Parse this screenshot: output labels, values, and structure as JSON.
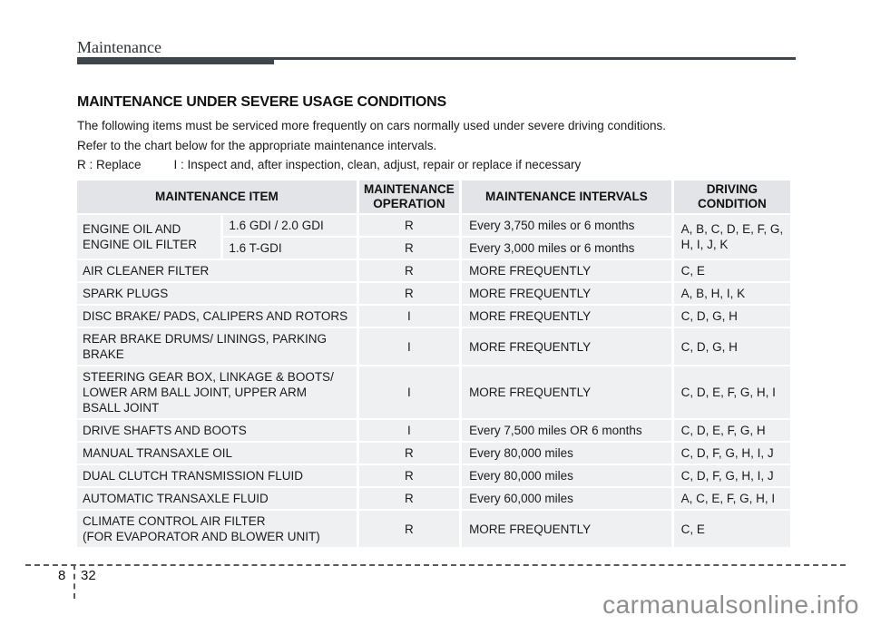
{
  "header": {
    "section_title": "Maintenance"
  },
  "content": {
    "title": "MAINTENANCE UNDER SEVERE USAGE CONDITIONS",
    "intro_line1": "The following items must be serviced more frequently on cars normally used under severe driving conditions.",
    "intro_line2": "Refer to the chart below for the appropriate maintenance intervals.",
    "legend_replace": "R : Replace",
    "legend_inspect": "I : Inspect and, after inspection, clean, adjust, repair or replace if necessary"
  },
  "table": {
    "header_cells": [
      {
        "text": "MAINTENANCE ITEM",
        "colspan": 2
      },
      {
        "text": "MAINTENANCE\nOPERATION"
      },
      {
        "text": "MAINTENANCE INTERVALS"
      },
      {
        "text": "DRIVING\nCONDITION"
      }
    ],
    "rows": [
      {
        "cells": [
          {
            "text": "ENGINE OIL AND\nENGINE OIL FILTER",
            "rowspan": 2,
            "type": "item"
          },
          {
            "text": "1.6 GDI / 2.0 GDI",
            "type": "item-sub"
          },
          {
            "text": "R",
            "type": "op"
          },
          {
            "text": "Every 3,750 miles or 6 months",
            "type": "interval"
          },
          {
            "text": "A, B, C, D, E, F, G, H, I, J, K",
            "rowspan": 2,
            "type": "cond"
          }
        ]
      },
      {
        "cells": [
          {
            "text": "1.6 T-GDI",
            "type": "item-sub"
          },
          {
            "text": "R",
            "type": "op"
          },
          {
            "text": "Every 3,000 miles or 6 months",
            "type": "interval"
          }
        ]
      },
      {
        "cells": [
          {
            "text": "AIR CLEANER FILTER",
            "colspan": 2,
            "type": "item"
          },
          {
            "text": "R",
            "type": "op"
          },
          {
            "text": "MORE FREQUENTLY",
            "type": "interval"
          },
          {
            "text": "C, E",
            "type": "cond"
          }
        ]
      },
      {
        "cells": [
          {
            "text": "SPARK PLUGS",
            "colspan": 2,
            "type": "item"
          },
          {
            "text": "R",
            "type": "op"
          },
          {
            "text": "MORE FREQUENTLY",
            "type": "interval"
          },
          {
            "text": "A, B, H, I, K",
            "type": "cond"
          }
        ]
      },
      {
        "cells": [
          {
            "text": "DISC BRAKE/ PADS, CALIPERS AND ROTORS",
            "colspan": 2,
            "type": "item"
          },
          {
            "text": "I",
            "type": "op"
          },
          {
            "text": "MORE FREQUENTLY",
            "type": "interval"
          },
          {
            "text": "C, D, G, H",
            "type": "cond"
          }
        ]
      },
      {
        "cells": [
          {
            "text": "REAR BRAKE DRUMS/ LININGS, PARKING\nBRAKE",
            "colspan": 2,
            "type": "item"
          },
          {
            "text": "I",
            "type": "op"
          },
          {
            "text": "MORE FREQUENTLY",
            "type": "interval"
          },
          {
            "text": "C, D, G, H",
            "type": "cond"
          }
        ]
      },
      {
        "cells": [
          {
            "text": "STEERING GEAR BOX, LINKAGE & BOOTS/\nLOWER ARM BALL JOINT, UPPER ARM\nBSALL JOINT",
            "colspan": 2,
            "type": "item"
          },
          {
            "text": "I",
            "type": "op"
          },
          {
            "text": "MORE FREQUENTLY",
            "type": "interval"
          },
          {
            "text": "C, D, E, F, G, H, I",
            "type": "cond"
          }
        ]
      },
      {
        "cells": [
          {
            "text": "DRIVE SHAFTS AND BOOTS",
            "colspan": 2,
            "type": "item"
          },
          {
            "text": "I",
            "type": "op"
          },
          {
            "text": "Every 7,500 miles OR 6 months",
            "type": "interval"
          },
          {
            "text": "C, D, E, F, G, H",
            "type": "cond"
          }
        ]
      },
      {
        "cells": [
          {
            "text": "MANUAL TRANSAXLE OIL",
            "colspan": 2,
            "type": "item"
          },
          {
            "text": "R",
            "type": "op"
          },
          {
            "text": "Every 80,000 miles",
            "type": "interval"
          },
          {
            "text": "C, D, F, G, H, I, J",
            "type": "cond"
          }
        ]
      },
      {
        "cells": [
          {
            "text": "DUAL CLUTCH TRANSMISSION FLUID",
            "colspan": 2,
            "type": "item"
          },
          {
            "text": "R",
            "type": "op"
          },
          {
            "text": "Every 80,000 miles",
            "type": "interval"
          },
          {
            "text": "C, D, F, G, H, I, J",
            "type": "cond"
          }
        ]
      },
      {
        "cells": [
          {
            "text": "AUTOMATIC TRANSAXLE FLUID",
            "colspan": 2,
            "type": "item"
          },
          {
            "text": "R",
            "type": "op"
          },
          {
            "text": "Every 60,000 miles",
            "type": "interval"
          },
          {
            "text": "A, C, E, F, G, H, I",
            "type": "cond"
          }
        ]
      },
      {
        "cells": [
          {
            "text": "CLIMATE CONTROL AIR FILTER\n(FOR EVAPORATOR AND BLOWER UNIT)",
            "colspan": 2,
            "type": "item"
          },
          {
            "text": "R",
            "type": "op"
          },
          {
            "text": "MORE FREQUENTLY",
            "type": "interval"
          },
          {
            "text": "C, E",
            "type": "cond"
          }
        ]
      }
    ]
  },
  "footer": {
    "chapter_number": "8",
    "page_number": "32"
  },
  "watermark": "carmanualsonline.info",
  "colors": {
    "accent_bar": "#3f464b",
    "table_header_bg": "#e3e4e7",
    "table_cell_bg": "#eff0f2",
    "watermark_text": "#8e8e8e"
  }
}
